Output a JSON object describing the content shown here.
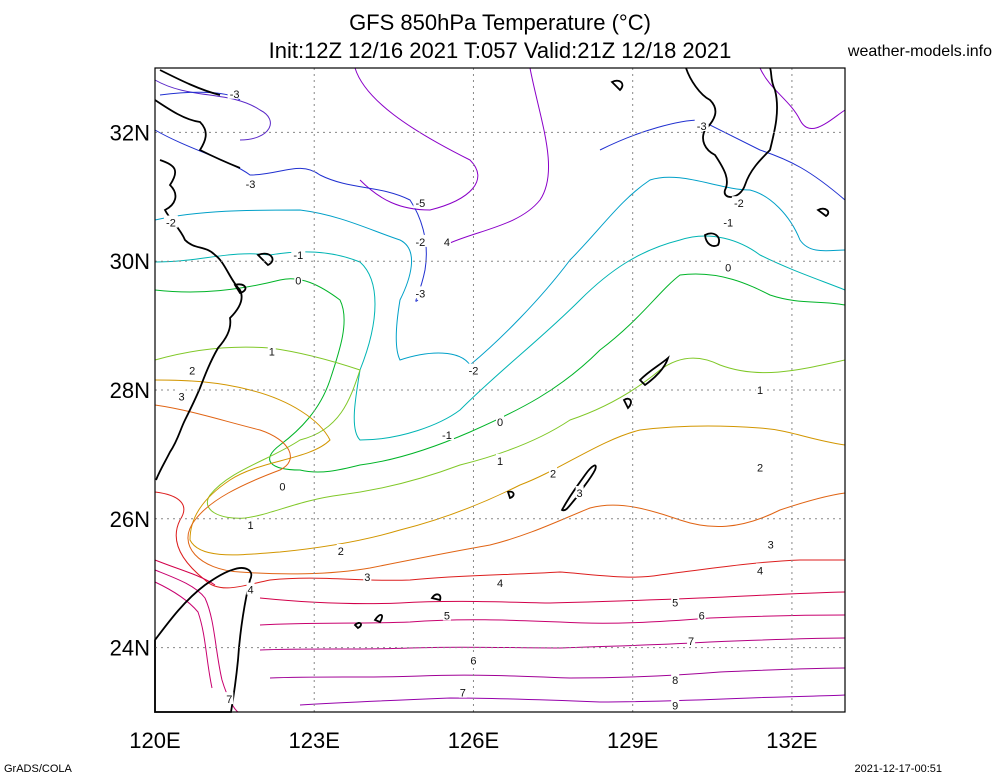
{
  "title": {
    "line1": "GFS 850hPa Temperature (°C)",
    "line2": "Init:12Z 12/16 2021 T:057 Valid:21Z 12/18 2021"
  },
  "site": "weather-models.info",
  "footer": {
    "left": "GrADS/COLA",
    "right": "2021-12-17-00:51"
  },
  "map": {
    "lon_range": [
      120,
      133
    ],
    "lat_range": [
      23,
      33
    ],
    "lat_labels": [
      "24N",
      "26N",
      "28N",
      "30N",
      "32N"
    ],
    "lon_labels": [
      "120E",
      "123E",
      "126E",
      "129E",
      "132E"
    ],
    "contour_labels": [
      {
        "text": "-3",
        "lon": 121.5,
        "lat": 32.6
      },
      {
        "text": "-3",
        "lon": 121.8,
        "lat": 31.2
      },
      {
        "text": "-2",
        "lon": 120.3,
        "lat": 30.6
      },
      {
        "text": "-5",
        "lon": 125.0,
        "lat": 30.9
      },
      {
        "text": "-2",
        "lon": 125.0,
        "lat": 30.3
      },
      {
        "text": "4",
        "lon": 125.5,
        "lat": 30.3
      },
      {
        "text": "-3",
        "lon": 125.0,
        "lat": 29.5
      },
      {
        "text": "-1",
        "lon": 122.7,
        "lat": 30.1
      },
      {
        "text": "0",
        "lon": 122.7,
        "lat": 29.7
      },
      {
        "text": "-3",
        "lon": 130.3,
        "lat": 32.1
      },
      {
        "text": "-2",
        "lon": 131.0,
        "lat": 30.9
      },
      {
        "text": "-1",
        "lon": 130.8,
        "lat": 30.6
      },
      {
        "text": "0",
        "lon": 130.8,
        "lat": 29.9
      },
      {
        "text": "-2",
        "lon": 126.0,
        "lat": 28.3
      },
      {
        "text": "1",
        "lon": 122.2,
        "lat": 28.6
      },
      {
        "text": "2",
        "lon": 120.7,
        "lat": 28.3
      },
      {
        "text": "3",
        "lon": 120.5,
        "lat": 27.9
      },
      {
        "text": "-1",
        "lon": 125.5,
        "lat": 27.3
      },
      {
        "text": "0",
        "lon": 126.5,
        "lat": 27.5
      },
      {
        "text": "1",
        "lon": 126.5,
        "lat": 26.9
      },
      {
        "text": "2",
        "lon": 127.5,
        "lat": 26.7
      },
      {
        "text": "3",
        "lon": 128.0,
        "lat": 26.4
      },
      {
        "text": "1",
        "lon": 131.4,
        "lat": 28.0
      },
      {
        "text": "2",
        "lon": 131.4,
        "lat": 26.8
      },
      {
        "text": "0",
        "lon": 122.4,
        "lat": 26.5
      },
      {
        "text": "1",
        "lon": 121.8,
        "lat": 25.9
      },
      {
        "text": "2",
        "lon": 123.5,
        "lat": 25.5
      },
      {
        "text": "3",
        "lon": 124.0,
        "lat": 25.1
      },
      {
        "text": "4",
        "lon": 121.8,
        "lat": 24.9
      },
      {
        "text": "4",
        "lon": 126.5,
        "lat": 25.0
      },
      {
        "text": "3",
        "lon": 131.6,
        "lat": 25.6
      },
      {
        "text": "4",
        "lon": 131.4,
        "lat": 25.2
      },
      {
        "text": "5",
        "lon": 125.5,
        "lat": 24.5
      },
      {
        "text": "5",
        "lon": 129.8,
        "lat": 24.7
      },
      {
        "text": "6",
        "lon": 130.3,
        "lat": 24.5
      },
      {
        "text": "6",
        "lon": 126.0,
        "lat": 23.8
      },
      {
        "text": "7",
        "lon": 130.1,
        "lat": 24.1
      },
      {
        "text": "7",
        "lon": 125.8,
        "lat": 23.3
      },
      {
        "text": "8",
        "lon": 129.8,
        "lat": 23.5
      },
      {
        "text": "9",
        "lon": 129.8,
        "lat": 23.1
      },
      {
        "text": "7",
        "lon": 121.4,
        "lat": 23.2
      }
    ]
  },
  "colors": {
    "m5": "#8a00c8",
    "m4": "#5a28c8",
    "m3": "#2030d0",
    "m2": "#00a0c8",
    "m1": "#00b4b4",
    "z0": "#00b428",
    "p1": "#80c828",
    "p2": "#d29600",
    "p3": "#e06414",
    "p4": "#dc1e1e",
    "p5": "#d2004a",
    "p6": "#c8006e",
    "p7": "#b40082",
    "p8": "#a00096",
    "p9": "#9600aa"
  }
}
